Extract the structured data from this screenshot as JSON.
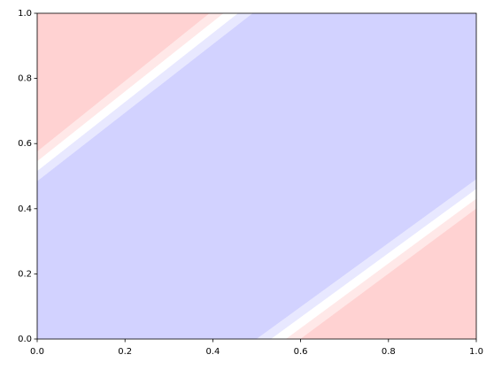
{
  "chart_data": {
    "type": "contour",
    "regions": [
      {
        "color": "#d2d2ff",
        "x": [
          0,
          0,
          0.49,
          1,
          1,
          0.5
        ],
        "y": [
          0,
          0.485,
          1,
          1,
          0.49,
          0
        ]
      },
      {
        "color": "#ffd2d2",
        "x": [
          0,
          0,
          0.393
        ],
        "y": [
          0.575,
          1,
          1
        ]
      },
      {
        "color": "#ffe8e8",
        "x": [
          0,
          0,
          0.393,
          0.425
        ],
        "y": [
          0.545,
          0.575,
          1,
          1
        ]
      },
      {
        "color": "#ffffff",
        "x": [
          0,
          0,
          0.425,
          0.458
        ],
        "y": [
          0.515,
          0.545,
          1,
          1
        ]
      },
      {
        "color": "#e8e8ff",
        "x": [
          0,
          0,
          0.458,
          0.49
        ],
        "y": [
          0.485,
          0.515,
          1,
          1
        ]
      },
      {
        "color": "#e8e8ff",
        "x": [
          0.5,
          1,
          1,
          0.533
        ],
        "y": [
          0,
          0.49,
          0.46,
          0
        ]
      },
      {
        "color": "#ffffff",
        "x": [
          0.533,
          1,
          1,
          0.567
        ],
        "y": [
          0,
          0.46,
          0.43,
          0
        ]
      },
      {
        "color": "#ffe8e8",
        "x": [
          0.567,
          1,
          1,
          0.6
        ],
        "y": [
          0,
          0.43,
          0.4,
          0
        ]
      },
      {
        "color": "#ffd2d2",
        "x": [
          0.6,
          1,
          1
        ],
        "y": [
          0,
          0.4,
          0
        ]
      }
    ],
    "xlim": [
      0,
      1
    ],
    "ylim": [
      0,
      1
    ],
    "xticks": [
      {
        "value": 0,
        "label": "0.0"
      },
      {
        "value": 0.2,
        "label": "0.2"
      },
      {
        "value": 0.4,
        "label": "0.4"
      },
      {
        "value": 0.6,
        "label": "0.6"
      },
      {
        "value": 0.8,
        "label": "0.8"
      },
      {
        "value": 1,
        "label": "1.0"
      }
    ],
    "yticks": [
      {
        "value": 0,
        "label": "0.0"
      },
      {
        "value": 0.2,
        "label": "0.2"
      },
      {
        "value": 0.4,
        "label": "0.4"
      },
      {
        "value": 0.6,
        "label": "0.6"
      },
      {
        "value": 0.8,
        "label": "0.8"
      },
      {
        "value": 1,
        "label": "1.0"
      }
    ]
  }
}
